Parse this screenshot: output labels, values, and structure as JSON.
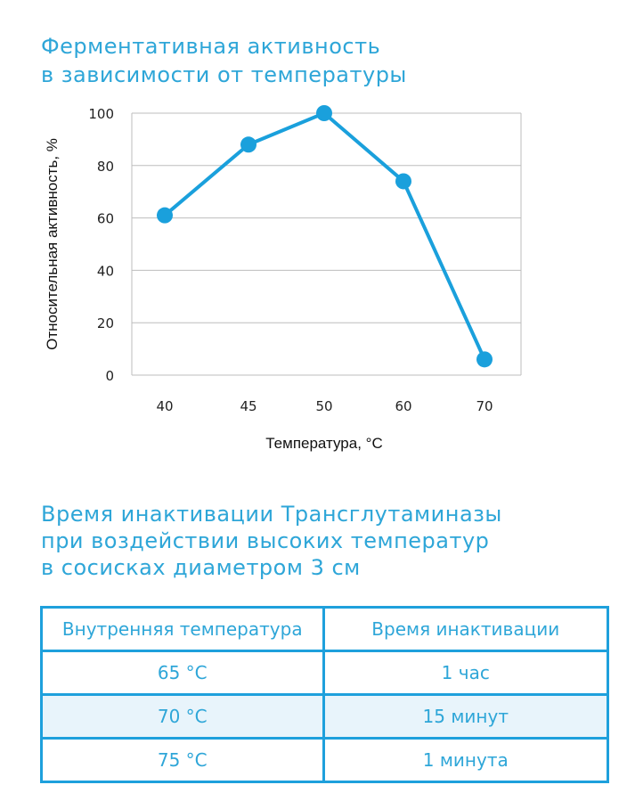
{
  "chart": {
    "title_lines": [
      "Ферментативная активность",
      "в зависимости от температуры"
    ]
  },
  "chart_data": {
    "type": "line",
    "title": "Ферментативная активность в зависимости от температуры",
    "xlabel": "Температура, °C",
    "ylabel": "Относительная активность, %",
    "categories": [
      "40",
      "45",
      "50",
      "60",
      "70"
    ],
    "values": [
      61,
      88,
      100,
      74,
      6
    ],
    "ylim": [
      0,
      100
    ],
    "yticks": [
      "0",
      "20",
      "40",
      "60",
      "80",
      "100"
    ],
    "grid": true,
    "color": "#1aa0dc"
  },
  "table_section": {
    "title_lines": [
      "Время инактивации Трансглутаминазы",
      "при воздействии высоких температур",
      "в сосисках диаметром 3 см"
    ],
    "headers": [
      "Внутренняя температура",
      "Время инактивации"
    ],
    "rows": [
      [
        "65 °C",
        "1 час"
      ],
      [
        "70 °C",
        "15 минут"
      ],
      [
        "75 °C",
        "1 минута"
      ]
    ]
  }
}
